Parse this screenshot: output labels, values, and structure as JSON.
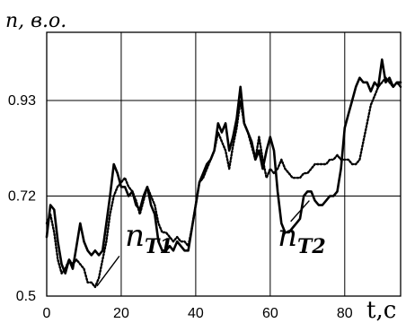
{
  "chart_data": {
    "type": "line",
    "ylabel": "n, в.о.",
    "xlabel": "t,c",
    "xlim": [
      0,
      95
    ],
    "ylim": [
      0.5,
      1.08
    ],
    "grid": true,
    "x_ticks": [
      0,
      20,
      40,
      60,
      80
    ],
    "x_tick_labels": [
      "0",
      "20",
      "40",
      "60",
      "80"
    ],
    "y_ticks": [
      0.5,
      0.72,
      0.93
    ],
    "y_tick_labels": [
      "0.5",
      "0.72",
      "0.93"
    ],
    "annotations": [
      {
        "main": "n",
        "sub": "T1",
        "label_at": [
          21,
          0.61
        ],
        "leader_from": [
          19.5,
          0.588
        ],
        "leader_to": [
          13.5,
          0.522
        ]
      },
      {
        "main": "n",
        "sub": "T2",
        "label_at": [
          62,
          0.61
        ],
        "leader_from": [
          65.5,
          0.664
        ],
        "leader_to": [
          70.5,
          0.71
        ]
      }
    ],
    "series": [
      {
        "style": "solid",
        "x": [
          0,
          1,
          2,
          3,
          4,
          5,
          6,
          7,
          8,
          9,
          10,
          11,
          12,
          13,
          14,
          15,
          16,
          17,
          18,
          19,
          20,
          21,
          22,
          23,
          24,
          25,
          26,
          27,
          28,
          29,
          30,
          31,
          32,
          33,
          34,
          35,
          36,
          37,
          38,
          39,
          40,
          41,
          42,
          43,
          44,
          45,
          46,
          47,
          48,
          49,
          50,
          51,
          52,
          53,
          54,
          55,
          56,
          57,
          58,
          59,
          60,
          61,
          62,
          63,
          64,
          65,
          66,
          67,
          68,
          69,
          70,
          71,
          72,
          73,
          74,
          75,
          76,
          77,
          78,
          79,
          80,
          81,
          82,
          83,
          84,
          85,
          86,
          87,
          88,
          89,
          90,
          91,
          92,
          93,
          94,
          95
        ],
        "y": [
          0.63,
          0.7,
          0.69,
          0.62,
          0.57,
          0.55,
          0.58,
          0.56,
          0.61,
          0.66,
          0.62,
          0.6,
          0.59,
          0.6,
          0.59,
          0.6,
          0.66,
          0.72,
          0.79,
          0.77,
          0.74,
          0.74,
          0.72,
          0.73,
          0.7,
          0.69,
          0.72,
          0.74,
          0.7,
          0.68,
          0.62,
          0.6,
          0.6,
          0.61,
          0.6,
          0.62,
          0.61,
          0.6,
          0.6,
          0.65,
          0.7,
          0.75,
          0.77,
          0.79,
          0.8,
          0.82,
          0.88,
          0.86,
          0.88,
          0.82,
          0.85,
          0.89,
          0.96,
          0.88,
          0.86,
          0.84,
          0.8,
          0.82,
          0.78,
          0.82,
          0.85,
          0.82,
          0.73,
          0.66,
          0.64,
          0.64,
          0.65,
          0.66,
          0.67,
          0.72,
          0.73,
          0.73,
          0.71,
          0.7,
          0.7,
          0.71,
          0.72,
          0.72,
          0.73,
          0.78,
          0.87,
          0.9,
          0.93,
          0.96,
          0.98,
          0.97,
          0.97,
          0.95,
          0.97,
          0.96,
          1.02,
          0.97,
          0.98,
          0.96,
          0.97,
          0.97
        ]
      },
      {
        "style": "dotted",
        "x": [
          0,
          1,
          2,
          3,
          4,
          5,
          6,
          7,
          8,
          9,
          10,
          11,
          12,
          13,
          14,
          15,
          16,
          17,
          18,
          19,
          20,
          21,
          22,
          23,
          24,
          25,
          26,
          27,
          28,
          29,
          30,
          31,
          32,
          33,
          34,
          35,
          36,
          37,
          38,
          39,
          40,
          41,
          42,
          43,
          44,
          45,
          46,
          47,
          48,
          49,
          50,
          51,
          52,
          53,
          54,
          55,
          56,
          57,
          58,
          59,
          60,
          61,
          62,
          63,
          64,
          65,
          66,
          67,
          68,
          69,
          70,
          71,
          72,
          73,
          74,
          75,
          76,
          77,
          78,
          79,
          80,
          81,
          82,
          83,
          84,
          85,
          86,
          87,
          88,
          89,
          90,
          91,
          92,
          93,
          94,
          95
        ],
        "y": [
          0.66,
          0.68,
          0.64,
          0.58,
          0.55,
          0.56,
          0.58,
          0.57,
          0.58,
          0.57,
          0.56,
          0.53,
          0.53,
          0.52,
          0.54,
          0.58,
          0.62,
          0.68,
          0.72,
          0.74,
          0.75,
          0.76,
          0.74,
          0.73,
          0.71,
          0.68,
          0.71,
          0.74,
          0.72,
          0.7,
          0.66,
          0.64,
          0.64,
          0.63,
          0.62,
          0.63,
          0.62,
          0.62,
          0.61,
          0.65,
          0.7,
          0.75,
          0.76,
          0.78,
          0.8,
          0.82,
          0.86,
          0.84,
          0.82,
          0.78,
          0.83,
          0.87,
          0.93,
          0.88,
          0.86,
          0.83,
          0.8,
          0.85,
          0.8,
          0.76,
          0.78,
          0.77,
          0.78,
          0.8,
          0.78,
          0.77,
          0.76,
          0.76,
          0.76,
          0.77,
          0.77,
          0.78,
          0.79,
          0.79,
          0.79,
          0.79,
          0.8,
          0.8,
          0.81,
          0.8,
          0.8,
          0.8,
          0.79,
          0.79,
          0.8,
          0.84,
          0.88,
          0.92,
          0.94,
          0.96,
          0.97,
          0.98,
          0.97,
          0.96,
          0.97,
          0.96
        ]
      }
    ]
  }
}
